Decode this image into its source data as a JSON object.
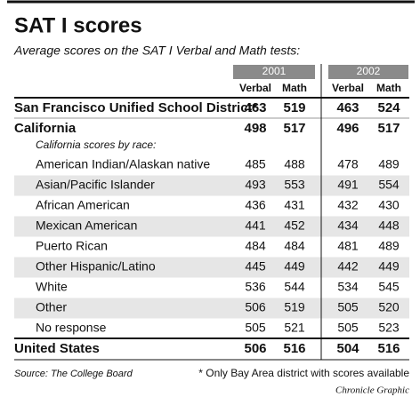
{
  "title": "SAT I scores",
  "subtitle": "Average scores on the SAT I Verbal and Math tests:",
  "table": {
    "years": [
      "2001",
      "2002"
    ],
    "columns": [
      "Verbal",
      "Math",
      "Verbal",
      "Math"
    ],
    "main_rows": [
      {
        "label": "San Francisco Unified School District*",
        "values": [
          "463",
          "519",
          "463",
          "524"
        ]
      },
      {
        "label": "California",
        "values": [
          "498",
          "517",
          "496",
          "517"
        ]
      }
    ],
    "subheading": "California scores by race:",
    "race_rows": [
      {
        "label": "American Indian/Alaskan native",
        "values": [
          "485",
          "488",
          "478",
          "489"
        ]
      },
      {
        "label": "Asian/Pacific Islander",
        "values": [
          "493",
          "553",
          "491",
          "554"
        ]
      },
      {
        "label": "African American",
        "values": [
          "436",
          "431",
          "432",
          "430"
        ]
      },
      {
        "label": "Mexican American",
        "values": [
          "441",
          "452",
          "434",
          "448"
        ]
      },
      {
        "label": "Puerto Rican",
        "values": [
          "484",
          "484",
          "481",
          "489"
        ]
      },
      {
        "label": "Other Hispanic/Latino",
        "values": [
          "445",
          "449",
          "442",
          "449"
        ]
      },
      {
        "label": "White",
        "values": [
          "536",
          "544",
          "534",
          "545"
        ]
      },
      {
        "label": "Other",
        "values": [
          "506",
          "519",
          "505",
          "520"
        ]
      },
      {
        "label": "No response",
        "values": [
          "505",
          "521",
          "505",
          "523"
        ]
      }
    ],
    "total_row": {
      "label": "United States",
      "values": [
        "506",
        "516",
        "504",
        "516"
      ]
    }
  },
  "footer": {
    "source": "Source: The College Board",
    "note": "* Only Bay Area district with scores available",
    "credit": "Chronicle Graphic"
  }
}
